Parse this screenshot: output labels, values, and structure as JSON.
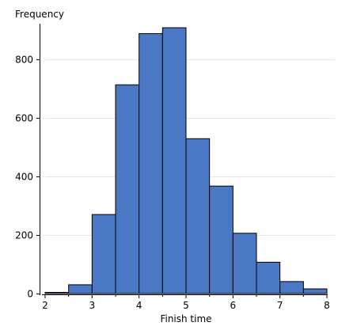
{
  "chart_data": {
    "type": "bar",
    "subtype": "histogram",
    "ylabel": "Frequency",
    "xlabel": "Finish time",
    "bin_width": 0.5,
    "bins": [
      {
        "start": 2.0,
        "end": 2.5,
        "count": 4
      },
      {
        "start": 2.5,
        "end": 3.0,
        "count": 30
      },
      {
        "start": 3.0,
        "end": 3.5,
        "count": 270
      },
      {
        "start": 3.5,
        "end": 4.0,
        "count": 713
      },
      {
        "start": 4.0,
        "end": 4.5,
        "count": 888
      },
      {
        "start": 4.5,
        "end": 5.0,
        "count": 908
      },
      {
        "start": 5.0,
        "end": 5.5,
        "count": 529
      },
      {
        "start": 5.5,
        "end": 6.0,
        "count": 367
      },
      {
        "start": 6.0,
        "end": 6.5,
        "count": 206
      },
      {
        "start": 6.5,
        "end": 7.0,
        "count": 107
      },
      {
        "start": 7.0,
        "end": 7.5,
        "count": 41
      },
      {
        "start": 7.5,
        "end": 8.0,
        "count": 16
      }
    ],
    "xlim": [
      2,
      8
    ],
    "ylim": [
      0,
      900
    ],
    "x_ticks": [
      2,
      3,
      4,
      5,
      6,
      7,
      8
    ],
    "x_tick_labels": [
      "2",
      "3",
      "4",
      "5",
      "6",
      "7",
      "8"
    ],
    "y_ticks": [
      0,
      200,
      400,
      600,
      800
    ],
    "y_tick_labels": [
      "0",
      "200",
      "400",
      "600",
      "800"
    ],
    "grid": true,
    "legend": false,
    "colors": {
      "bar_fill": "#4a78c4",
      "bar_stroke": "#000000",
      "grid": "#e6e6e6",
      "axis": "#000000"
    }
  }
}
